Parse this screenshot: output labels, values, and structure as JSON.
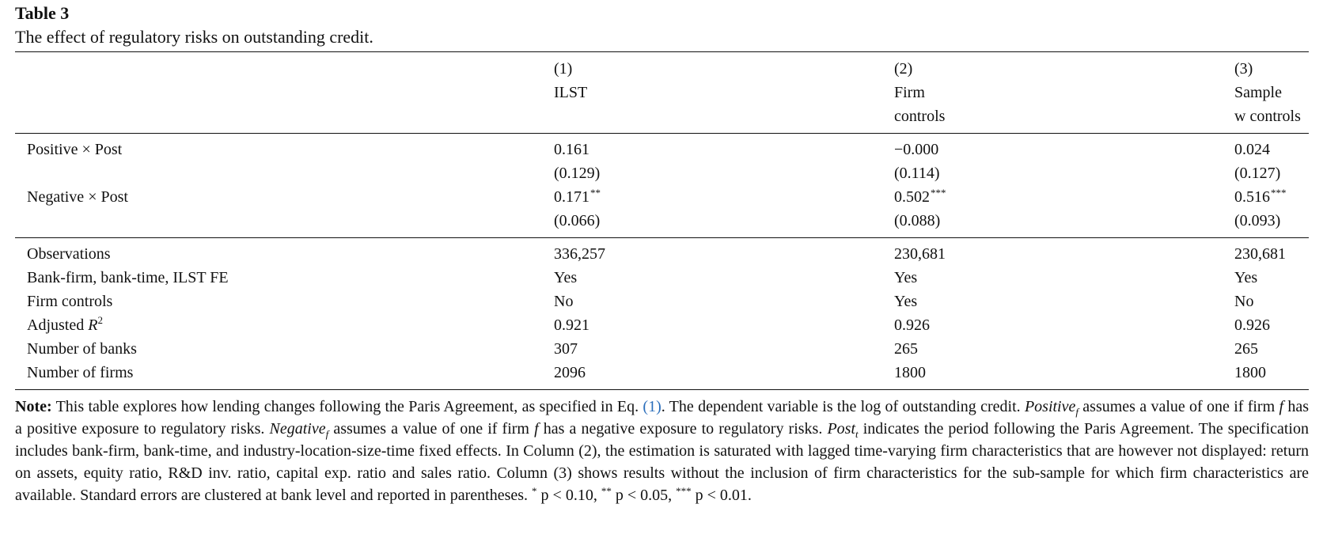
{
  "table": {
    "label": "Table 3",
    "caption": "The effect of regulatory risks on outstanding credit.",
    "headers": [
      [
        "(1)",
        "ILST",
        ""
      ],
      [
        "(2)",
        "Firm",
        "controls"
      ],
      [
        "(3)",
        "Sample",
        "w controls"
      ]
    ],
    "coef_rows": [
      {
        "label": "Positive × Post",
        "values": [
          "0.161",
          "−0.000",
          "0.024"
        ],
        "stars": [
          "",
          "",
          ""
        ],
        "se": [
          "(0.129)",
          "(0.114)",
          "(0.127)"
        ]
      },
      {
        "label": "Negative × Post",
        "values": [
          "0.171",
          "0.502",
          "0.516"
        ],
        "stars": [
          "**",
          "***",
          "***"
        ],
        "se": [
          "(0.066)",
          "(0.088)",
          "(0.093)"
        ]
      }
    ],
    "stat_rows": [
      {
        "label": "Observations",
        "values": [
          "336,257",
          "230,681",
          "230,681"
        ]
      },
      {
        "label": "Bank-firm, bank-time, ILST FE",
        "values": [
          "Yes",
          "Yes",
          "Yes"
        ]
      },
      {
        "label": "Firm controls",
        "values": [
          "No",
          "Yes",
          "No"
        ]
      },
      {
        "label_main": "Adjusted ",
        "label_var": "R",
        "label_sup": "2",
        "values": [
          "0.921",
          "0.926",
          "0.926"
        ]
      },
      {
        "label": "Number of banks",
        "values": [
          "307",
          "265",
          "265"
        ]
      },
      {
        "label": "Number of firms",
        "values": [
          "2096",
          "1800",
          "1800"
        ]
      }
    ]
  },
  "note": {
    "lead": "Note:",
    "t1": " This table explores how lending changes following the Paris Agreement, as specified in Eq. ",
    "ref": "(1)",
    "t2": ". The dependent variable is the log of outstanding credit. ",
    "v_positive": "Positive",
    "sub_f": "f",
    "t3": " assumes a value of one if firm ",
    "var_f": "f",
    "t4": " has a positive exposure to regulatory risks. ",
    "v_negative": "Negative",
    "t5": " assumes a value of one if firm ",
    "t6": " has a negative exposure to regulatory risks. ",
    "v_post": "Post",
    "sub_t": "t",
    "t7": " indicates the period following the Paris Agreement. The specification includes bank-firm, bank-time, and industry-location-size-time fixed effects. In Column (2), the estimation is saturated with lagged time-varying firm characteristics that are however not displayed: return on assets, equity ratio, R&D inv. ratio, capital exp. ratio and sales ratio. Column (3) shows results without the inclusion of firm characteristics for the sub-sample for which firm characteristics are available. Standard errors are clustered at bank level and reported in parentheses. ",
    "sig1_star": "*",
    "sig1": " p < 0.10, ",
    "sig2_star": "**",
    "sig2": " p < 0.05, ",
    "sig3_star": "***",
    "sig3": " p < 0.01."
  }
}
